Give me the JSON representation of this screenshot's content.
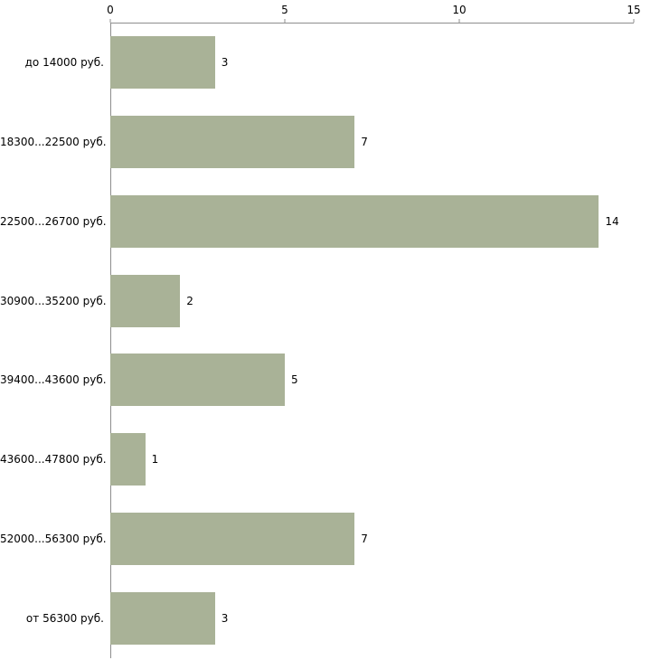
{
  "chart_data": {
    "type": "bar",
    "orientation": "horizontal",
    "title": "",
    "xlabel": "",
    "ylabel": "",
    "categories": [
      "до 14000 руб.",
      "18300...22500 руб.",
      "22500...26700 руб.",
      "30900...35200 руб.",
      "39400...43600 руб.",
      "43600...47800 руб.",
      "52000...56300 руб.",
      "от 56300 руб."
    ],
    "values": [
      3,
      7,
      14,
      2,
      5,
      1,
      7,
      3
    ],
    "xlim": [
      0,
      15
    ],
    "x_ticks": [
      0,
      5,
      10,
      15
    ],
    "bar_color": "#a9b297",
    "axis_color": "#8e8e8e",
    "text_color": "#000000",
    "grid": false,
    "legend": false,
    "value_labels_shown": true
  }
}
